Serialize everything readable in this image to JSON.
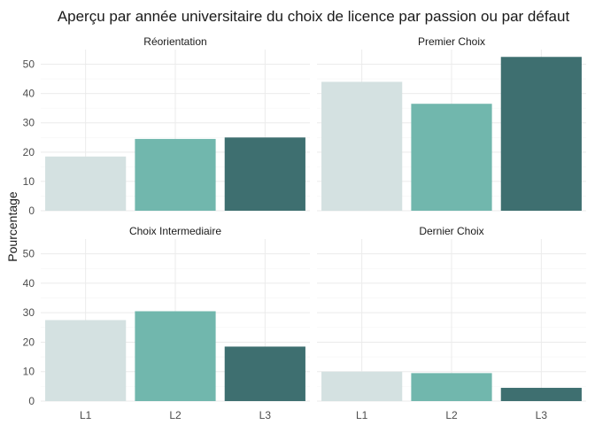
{
  "chart_data": {
    "type": "bar",
    "title": "Aperçu par année universitaire du choix de licence par passion ou par défaut",
    "xlabel": "",
    "ylabel": "Pourcentage",
    "categories": [
      "L1",
      "L2",
      "L3"
    ],
    "colors": [
      "#d4e1e1",
      "#71b7ad",
      "#3e6f70"
    ],
    "ylim": [
      0,
      55
    ],
    "yticks": [
      0,
      10,
      20,
      30,
      40,
      50
    ],
    "grid": true,
    "legend": "none",
    "panels": [
      {
        "name": "Réorientation",
        "values": [
          18.5,
          24.5,
          25
        ]
      },
      {
        "name": "Premier Choix",
        "values": [
          44,
          36.5,
          52.5
        ]
      },
      {
        "name": "Choix Intermediaire",
        "values": [
          27.5,
          30.5,
          18.5
        ]
      },
      {
        "name": "Dernier Choix",
        "values": [
          10,
          9.5,
          4.5
        ]
      }
    ]
  }
}
